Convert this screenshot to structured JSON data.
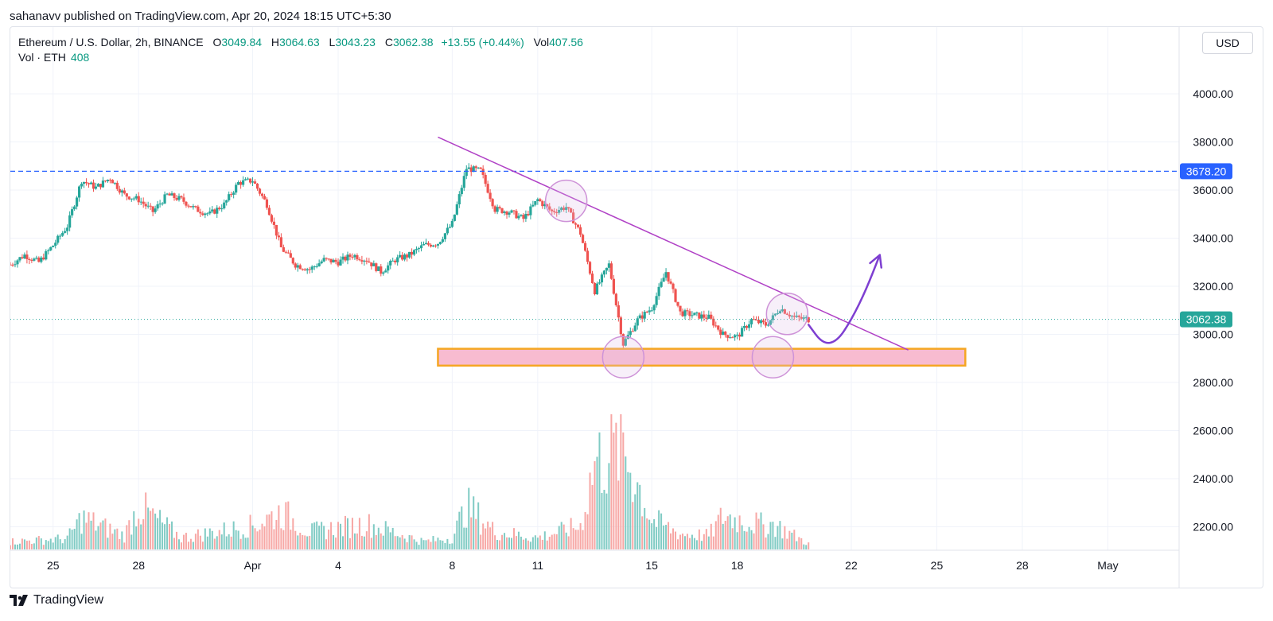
{
  "publisher_line": "sahanavv published on TradingView.com, Apr 20, 2024 18:15 UTC+5:30",
  "legend": {
    "symbol": "Ethereum / U.S. Dollar, 2h, BINANCE",
    "open_key": "O",
    "open": "3049.84",
    "high_key": "H",
    "high": "3064.63",
    "low_key": "L",
    "low": "3043.23",
    "close_key": "C",
    "close": "3062.38",
    "change": "+13.55 (+0.44%)",
    "vol_key": "Vol",
    "vol": "407.56",
    "vol_row_label": "Vol · ETH",
    "vol_row_value": "408"
  },
  "currency_button": "USD",
  "brand": "TradingView",
  "colors": {
    "up": "#26a69a",
    "down": "#ef5350",
    "vol_up": "#80cbc4",
    "vol_down": "#f7a7a5",
    "level_line": "#2962ff",
    "last_price": "#26a69a",
    "trendline": "#b041c6",
    "zone_fill": "#f8bbd0",
    "zone_border": "#f5a623",
    "arrow": "#7e3fd1",
    "circle": "#ce93d8"
  },
  "chart_data": {
    "type": "candlestick",
    "title": "Ethereum / U.S. Dollar, 2h, BINANCE",
    "y_axis": {
      "ticks": [
        4000,
        3800,
        3600,
        3400,
        3200,
        3000,
        2800,
        2600,
        2400,
        2200
      ],
      "tick_labels": [
        "4000.00",
        "3800.00",
        "3600.00",
        "3400.00",
        "3200.00",
        "3000.00",
        "2800.00",
        "2600.00",
        "2400.00",
        "2200.00"
      ],
      "range": [
        2100,
        4100
      ],
      "side": "right"
    },
    "x_axis": {
      "range": [
        "2024-03-23T12:00",
        "2024-05-03T12:00"
      ],
      "ticks": [
        {
          "date": "2024-03-25",
          "label": "25"
        },
        {
          "date": "2024-03-28",
          "label": "28"
        },
        {
          "date": "2024-04-01",
          "label": "Apr"
        },
        {
          "date": "2024-04-04",
          "label": "4"
        },
        {
          "date": "2024-04-08",
          "label": "8"
        },
        {
          "date": "2024-04-11",
          "label": "11"
        },
        {
          "date": "2024-04-15",
          "label": "15"
        },
        {
          "date": "2024-04-18",
          "label": "18"
        },
        {
          "date": "2024-04-22",
          "label": "22"
        },
        {
          "date": "2024-04-25",
          "label": "25"
        },
        {
          "date": "2024-04-28",
          "label": "28"
        },
        {
          "date": "2024-05-01",
          "label": "May"
        }
      ]
    },
    "grid": true,
    "price_path": [
      [
        "2024-03-23T12:00",
        3290
      ],
      [
        "2024-03-24T00:00",
        3330
      ],
      [
        "2024-03-24T12:00",
        3300
      ],
      [
        "2024-03-25T00:00",
        3370
      ],
      [
        "2024-03-25T12:00",
        3450
      ],
      [
        "2024-03-26T00:00",
        3640
      ],
      [
        "2024-03-26T12:00",
        3610
      ],
      [
        "2024-03-27T00:00",
        3650
      ],
      [
        "2024-03-27T12:00",
        3580
      ],
      [
        "2024-03-28T00:00",
        3560
      ],
      [
        "2024-03-28T12:00",
        3510
      ],
      [
        "2024-03-29T00:00",
        3580
      ],
      [
        "2024-03-29T12:00",
        3560
      ],
      [
        "2024-03-30T00:00",
        3520
      ],
      [
        "2024-03-30T12:00",
        3500
      ],
      [
        "2024-03-31T00:00",
        3540
      ],
      [
        "2024-03-31T12:00",
        3630
      ],
      [
        "2024-04-01T00:00",
        3640
      ],
      [
        "2024-04-01T12:00",
        3540
      ],
      [
        "2024-04-02T00:00",
        3360
      ],
      [
        "2024-04-02T12:00",
        3290
      ],
      [
        "2024-04-03T00:00",
        3270
      ],
      [
        "2024-04-03T12:00",
        3310
      ],
      [
        "2024-04-04T00:00",
        3300
      ],
      [
        "2024-04-04T12:00",
        3330
      ],
      [
        "2024-04-05T00:00",
        3310
      ],
      [
        "2024-04-05T12:00",
        3260
      ],
      [
        "2024-04-06T00:00",
        3310
      ],
      [
        "2024-04-06T12:00",
        3330
      ],
      [
        "2024-04-07T00:00",
        3370
      ],
      [
        "2024-04-07T12:00",
        3380
      ],
      [
        "2024-04-08T00:00",
        3460
      ],
      [
        "2024-04-08T12:00",
        3690
      ],
      [
        "2024-04-09T00:00",
        3680
      ],
      [
        "2024-04-09T12:00",
        3520
      ],
      [
        "2024-04-10T00:00",
        3510
      ],
      [
        "2024-04-10T12:00",
        3480
      ],
      [
        "2024-04-11T00:00",
        3560
      ],
      [
        "2024-04-11T12:00",
        3510
      ],
      [
        "2024-04-12T00:00",
        3530
      ],
      [
        "2024-04-12T12:00",
        3420
      ],
      [
        "2024-04-13T00:00",
        3180
      ],
      [
        "2024-04-13T12:00",
        3290
      ],
      [
        "2024-04-14T00:00",
        2960
      ],
      [
        "2024-04-14T12:00",
        3060
      ],
      [
        "2024-04-15T00:00",
        3110
      ],
      [
        "2024-04-15T12:00",
        3260
      ],
      [
        "2024-04-16T00:00",
        3090
      ],
      [
        "2024-04-16T12:00",
        3080
      ],
      [
        "2024-04-17T00:00",
        3070
      ],
      [
        "2024-04-17T12:00",
        3000
      ],
      [
        "2024-04-18T00:00",
        2990
      ],
      [
        "2024-04-18T12:00",
        3060
      ],
      [
        "2024-04-19T00:00",
        3040
      ],
      [
        "2024-04-19T06:00",
        3070
      ],
      [
        "2024-04-19T12:00",
        3110
      ],
      [
        "2024-04-20T00:00",
        3070
      ],
      [
        "2024-04-20T12:00",
        3062
      ]
    ],
    "volume_path": [
      [
        "2024-03-23T12:00",
        40
      ],
      [
        "2024-03-25T12:00",
        55
      ],
      [
        "2024-03-26T00:00",
        160
      ],
      [
        "2024-03-27T12:00",
        70
      ],
      [
        "2024-03-28T00:00",
        220
      ],
      [
        "2024-03-29T12:00",
        60
      ],
      [
        "2024-04-01T00:00",
        120
      ],
      [
        "2024-04-02T00:00",
        190
      ],
      [
        "2024-04-03T00:00",
        90
      ],
      [
        "2024-04-05T00:00",
        130
      ],
      [
        "2024-04-07T00:00",
        40
      ],
      [
        "2024-04-08T00:00",
        60
      ],
      [
        "2024-04-08T12:00",
        220
      ],
      [
        "2024-04-09T12:00",
        90
      ],
      [
        "2024-04-11T00:00",
        60
      ],
      [
        "2024-04-12T12:00",
        120
      ],
      [
        "2024-04-13T00:00",
        440
      ],
      [
        "2024-04-14T00:00",
        520
      ],
      [
        "2024-04-15T00:00",
        150
      ],
      [
        "2024-04-16T00:00",
        80
      ],
      [
        "2024-04-17T00:00",
        70
      ],
      [
        "2024-04-17T12:00",
        170
      ],
      [
        "2024-04-19T00:00",
        120
      ],
      [
        "2024-04-19T06:00",
        130
      ],
      [
        "2024-04-20T12:00",
        30
      ]
    ],
    "volume_max": 500,
    "horizontal_level": {
      "value": 3678.2,
      "label": "3678.20",
      "style": "dashed"
    },
    "last_price": {
      "value": 3062.38,
      "label": "3062.38",
      "style": "dotted"
    },
    "trendline": {
      "from": [
        "2024-04-07T12:00",
        3820
      ],
      "to": [
        "2024-04-24T00:00",
        2935
      ]
    },
    "support_zone": {
      "from": "2024-04-07T12:00",
      "to": "2024-04-25T24:00",
      "top": 2940,
      "bottom": 2870
    },
    "circles": [
      {
        "at": "2024-04-12T00:00",
        "price": 3555
      },
      {
        "at": "2024-04-14T00:00",
        "price": 2905
      },
      {
        "at": "2024-04-19T06:00",
        "price": 2905
      },
      {
        "at": "2024-04-19T18:00",
        "price": 3085
      }
    ],
    "projection_arrow": [
      [
        "2024-04-20T12:00",
        3040
      ],
      [
        "2024-04-21T00:00",
        2960
      ],
      [
        "2024-04-21T12:00",
        2970
      ],
      [
        "2024-04-22T00:00",
        3060
      ],
      [
        "2024-04-22T12:00",
        3180
      ],
      [
        "2024-04-23T00:00",
        3330
      ]
    ]
  }
}
